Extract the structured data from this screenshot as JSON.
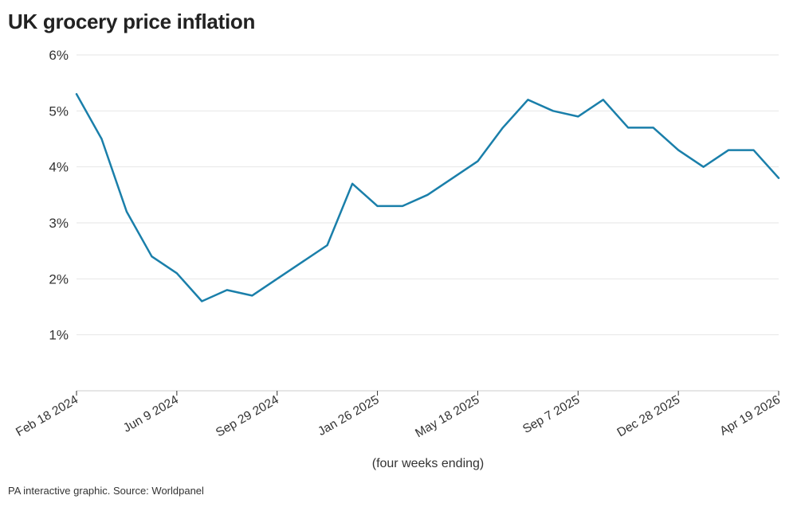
{
  "title": "UK grocery price inflation",
  "source": "PA interactive graphic. Source: Worldpanel",
  "chart_data": {
    "type": "line",
    "title": "UK grocery price inflation",
    "xlabel": "(four weeks ending)",
    "ylabel": "",
    "ylim": [
      0,
      6
    ],
    "yticks": [
      {
        "value": 1,
        "label": "1%"
      },
      {
        "value": 2,
        "label": "2%"
      },
      {
        "value": 3,
        "label": "3%"
      },
      {
        "value": 4,
        "label": "4%"
      },
      {
        "value": 5,
        "label": "5%"
      },
      {
        "value": 6,
        "label": "6%"
      }
    ],
    "xticks": [
      {
        "index": 0,
        "label": "Feb 18 2024"
      },
      {
        "index": 4,
        "label": "Jun 9 2024"
      },
      {
        "index": 8,
        "label": "Sep 29 2024"
      },
      {
        "index": 12,
        "label": "Jan 26 2025"
      },
      {
        "index": 16,
        "label": "May 18 2025"
      },
      {
        "index": 20,
        "label": "Sep 7 2025"
      },
      {
        "index": 24,
        "label": "Dec 28 2025"
      },
      {
        "index": 28,
        "label": "Apr 19 2026"
      }
    ],
    "grid": true,
    "line_color": "#1a7faa",
    "series": [
      {
        "values": [
          5.3,
          4.5,
          3.2,
          2.4,
          2.1,
          1.6,
          1.8,
          1.7,
          2.0,
          2.3,
          2.6,
          3.7,
          3.3,
          3.3,
          3.5,
          3.8,
          4.1,
          4.7,
          5.2,
          5.0,
          4.9,
          5.2,
          4.7,
          4.7,
          4.3,
          4.0,
          4.3,
          4.3,
          3.8
        ]
      }
    ]
  }
}
